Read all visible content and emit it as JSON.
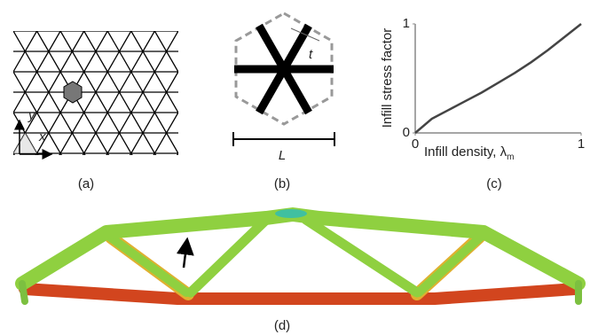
{
  "panel_a": {
    "label": "(a)",
    "axis_x": "x",
    "axis_y": "y"
  },
  "panel_b": {
    "label": "(b)",
    "thickness": "t",
    "length": "L"
  },
  "panel_c": {
    "label": "(c)",
    "type": "line",
    "y_label": "Infill stress factor",
    "x_label": "Infill density, λ",
    "x_label_sub": "m",
    "x": [
      0,
      0.1,
      0.2,
      0.3,
      0.4,
      0.5,
      0.6,
      0.7,
      0.8,
      0.9,
      1
    ],
    "values": [
      0,
      0.13,
      0.21,
      0.29,
      0.37,
      0.46,
      0.55,
      0.65,
      0.76,
      0.88,
      1
    ],
    "color": "#444444",
    "xlim": [
      0,
      1
    ],
    "ylim": [
      0,
      1
    ],
    "xticks": [
      0,
      1
    ],
    "yticks": [
      0,
      1
    ]
  },
  "panel_d": {
    "label": "(d)"
  }
}
